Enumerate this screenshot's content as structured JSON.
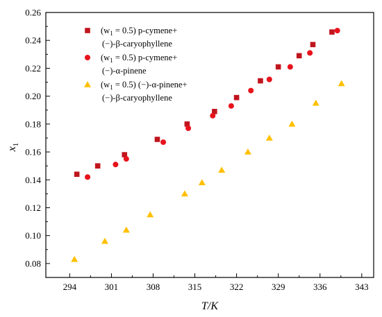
{
  "chart_data": {
    "type": "scatter",
    "xlabel": "T/K",
    "ylabel": "x1",
    "xlim": [
      290,
      345
    ],
    "ylim": [
      0.07,
      0.26
    ],
    "x_ticks": [
      "294",
      "301",
      "308",
      "315",
      "322",
      "329",
      "336",
      "343"
    ],
    "x_tick_values": [
      294,
      301,
      308,
      315,
      322,
      329,
      336,
      343
    ],
    "y_ticks": [
      "0.08",
      "0.10",
      "0.12",
      "0.14",
      "0.16",
      "0.18",
      "0.20",
      "0.22",
      "0.24",
      "0.26"
    ],
    "y_tick_values": [
      0.08,
      0.1,
      0.12,
      0.14,
      0.16,
      0.18,
      0.2,
      0.22,
      0.24,
      0.26
    ],
    "grid": false,
    "legend_position": "top-left",
    "series": [
      {
        "name": "(w1 = 0.5) p-cymene+ (−)-β-caryophyllene",
        "legend_line1": "(w1 = 0.5) p-cymene+",
        "legend_line2": "(−)-β-caryophyllene",
        "marker": "square",
        "color": "#c0151d",
        "x": [
          295.2,
          298.7,
          303.2,
          308.7,
          313.7,
          318.3,
          322.0,
          326.0,
          329.0,
          332.5,
          334.8,
          338.0
        ],
        "y": [
          0.144,
          0.15,
          0.158,
          0.169,
          0.18,
          0.189,
          0.199,
          0.211,
          0.221,
          0.229,
          0.237,
          0.246
        ]
      },
      {
        "name": "(w1 = 0.5) p-cymene+ (−)-α-pinene",
        "legend_line1": "(w1 = 0.5) p-cymene+",
        "legend_line2": "(−)-α-pinene",
        "marker": "circle",
        "color": "#e8131c",
        "x": [
          297.0,
          301.7,
          303.5,
          309.7,
          313.9,
          318.0,
          321.1,
          324.4,
          327.5,
          331.0,
          334.3,
          338.9
        ],
        "y": [
          0.142,
          0.151,
          0.155,
          0.167,
          0.177,
          0.186,
          0.193,
          0.204,
          0.212,
          0.221,
          0.231,
          0.247
        ]
      },
      {
        "name": "(w1 = 0.5) (−)-α-pinene+ (−)-β-caryophyllene",
        "legend_line1": "(w1 = 0.5) (−)-α-pinene+",
        "legend_line2": "(−)-β-caryophyllene",
        "marker": "triangle",
        "color": "#ffc000",
        "x": [
          294.8,
          299.9,
          303.5,
          307.5,
          313.3,
          316.2,
          319.5,
          323.9,
          327.5,
          331.3,
          335.3,
          339.6
        ],
        "y": [
          0.083,
          0.096,
          0.104,
          0.115,
          0.13,
          0.138,
          0.147,
          0.16,
          0.17,
          0.18,
          0.195,
          0.209
        ]
      }
    ]
  }
}
